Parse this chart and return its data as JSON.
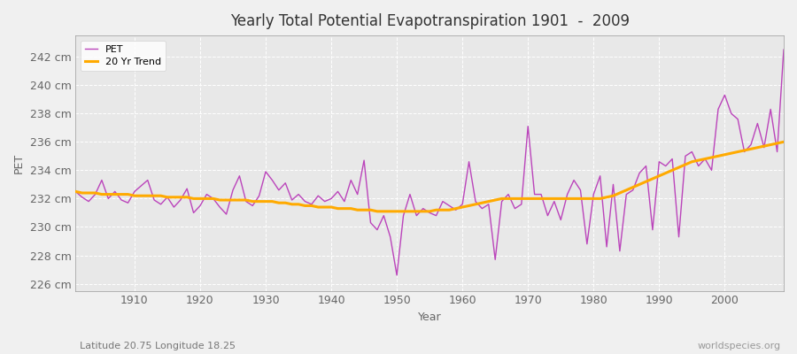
{
  "title": "Yearly Total Potential Evapotranspiration 1901  -  2009",
  "xlabel": "Year",
  "ylabel": "PET",
  "bottom_left_label": "Latitude 20.75 Longitude 18.25",
  "bottom_right_label": "worldspecies.org",
  "pet_color": "#bb44bb",
  "trend_color": "#ffaa00",
  "fig_bg_color": "#f0f0f0",
  "plot_bg_color": "#e8e8e8",
  "grid_color": "#ffffff",
  "ylim": [
    225.5,
    243.5
  ],
  "yticks": [
    226,
    228,
    230,
    232,
    234,
    236,
    238,
    240,
    242
  ],
  "years": [
    1901,
    1902,
    1903,
    1904,
    1905,
    1906,
    1907,
    1908,
    1909,
    1910,
    1911,
    1912,
    1913,
    1914,
    1915,
    1916,
    1917,
    1918,
    1919,
    1920,
    1921,
    1922,
    1923,
    1924,
    1925,
    1926,
    1927,
    1928,
    1929,
    1930,
    1931,
    1932,
    1933,
    1934,
    1935,
    1936,
    1937,
    1938,
    1939,
    1940,
    1941,
    1942,
    1943,
    1944,
    1945,
    1946,
    1947,
    1948,
    1949,
    1950,
    1951,
    1952,
    1953,
    1954,
    1955,
    1956,
    1957,
    1958,
    1959,
    1960,
    1961,
    1962,
    1963,
    1964,
    1965,
    1966,
    1967,
    1968,
    1969,
    1970,
    1971,
    1972,
    1973,
    1974,
    1975,
    1976,
    1977,
    1978,
    1979,
    1980,
    1981,
    1982,
    1983,
    1984,
    1985,
    1986,
    1987,
    1988,
    1989,
    1990,
    1991,
    1992,
    1993,
    1994,
    1995,
    1996,
    1997,
    1998,
    1999,
    2000,
    2001,
    2002,
    2003,
    2004,
    2005,
    2006,
    2007,
    2008,
    2009
  ],
  "pet_values": [
    232.5,
    232.1,
    231.8,
    232.3,
    233.3,
    232.0,
    232.5,
    231.9,
    231.7,
    232.5,
    232.9,
    233.3,
    231.9,
    231.6,
    232.1,
    231.4,
    231.9,
    232.7,
    231.0,
    231.5,
    232.3,
    232.0,
    231.4,
    230.9,
    232.6,
    233.6,
    231.8,
    231.5,
    232.2,
    233.9,
    233.3,
    232.6,
    233.1,
    231.9,
    232.3,
    231.8,
    231.6,
    232.2,
    231.8,
    232.0,
    232.5,
    231.8,
    233.3,
    232.3,
    234.7,
    230.3,
    229.8,
    230.8,
    229.3,
    226.6,
    230.8,
    232.3,
    230.8,
    231.3,
    231.0,
    230.8,
    231.8,
    231.5,
    231.2,
    231.6,
    234.6,
    231.8,
    231.3,
    231.6,
    227.7,
    231.8,
    232.3,
    231.3,
    231.6,
    237.1,
    232.3,
    232.3,
    230.8,
    231.8,
    230.5,
    232.3,
    233.3,
    232.6,
    228.8,
    232.3,
    233.6,
    228.6,
    233.0,
    228.3,
    232.3,
    232.6,
    233.8,
    234.3,
    229.8,
    234.6,
    234.3,
    234.8,
    229.3,
    235.0,
    235.3,
    234.3,
    234.8,
    234.0,
    238.3,
    239.3,
    238.0,
    237.6,
    235.3,
    235.8,
    237.3,
    235.6,
    238.3,
    235.3,
    242.5
  ],
  "trend_values": [
    232.5,
    232.4,
    232.4,
    232.4,
    232.3,
    232.3,
    232.3,
    232.3,
    232.3,
    232.2,
    232.2,
    232.2,
    232.2,
    232.2,
    232.1,
    232.1,
    232.1,
    232.1,
    232.0,
    232.0,
    232.0,
    232.0,
    231.9,
    231.9,
    231.9,
    231.9,
    231.9,
    231.8,
    231.8,
    231.8,
    231.8,
    231.7,
    231.7,
    231.6,
    231.6,
    231.5,
    231.5,
    231.4,
    231.4,
    231.4,
    231.3,
    231.3,
    231.3,
    231.2,
    231.2,
    231.2,
    231.1,
    231.1,
    231.1,
    231.1,
    231.1,
    231.1,
    231.1,
    231.1,
    231.1,
    231.2,
    231.2,
    231.2,
    231.3,
    231.4,
    231.5,
    231.6,
    231.7,
    231.8,
    231.9,
    232.0,
    232.0,
    232.0,
    232.0,
    232.0,
    232.0,
    232.0,
    232.0,
    232.0,
    232.0,
    232.0,
    232.0,
    232.0,
    232.0,
    232.0,
    232.0,
    232.1,
    232.2,
    232.4,
    232.6,
    232.8,
    233.0,
    233.2,
    233.4,
    233.6,
    233.8,
    234.0,
    234.2,
    234.4,
    234.6,
    234.7,
    234.8,
    234.9,
    235.0,
    235.1,
    235.2,
    235.3,
    235.4,
    235.5,
    235.6,
    235.7,
    235.8,
    235.9,
    236.0
  ],
  "xticks": [
    1910,
    1920,
    1930,
    1940,
    1950,
    1960,
    1970,
    1980,
    1990,
    2000
  ],
  "xlim": [
    1901,
    2009
  ],
  "legend_labels": [
    "PET",
    "20 Yr Trend"
  ]
}
